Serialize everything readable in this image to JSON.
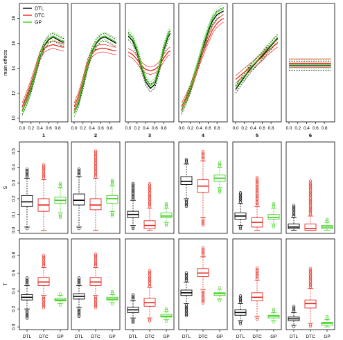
{
  "chart_data": {
    "type": "line",
    "title": "",
    "legend": {
      "position": "top-left of panel 1",
      "entries": [
        {
          "label": "DTL",
          "color": "#000000"
        },
        {
          "label": "DTC",
          "color": "#e8251b"
        },
        {
          "label": "GP",
          "color": "#3cd11a"
        }
      ]
    },
    "rows": [
      {
        "ylabel": "main effects",
        "ylim": [
          9.7,
          19.2
        ],
        "yticks": [
          "10",
          "12",
          "14",
          "16",
          "18"
        ],
        "xticks": [
          "0.0",
          "0.2",
          "0.4",
          "0.6",
          "0.8"
        ],
        "panel_labels": [
          "1",
          "2",
          "3",
          "4",
          "5",
          "6"
        ],
        "grid": false
      },
      {
        "ylabel": "S",
        "ylim": [
          -0.02,
          0.56
        ],
        "yticks": [
          "0.0",
          "0.1",
          "0.2",
          "0.3",
          "0.4",
          "0.5"
        ],
        "grid": false
      },
      {
        "ylabel": "T",
        "ylim": [
          -0.03,
          0.98
        ],
        "yticks": [
          "0.0",
          "0.2",
          "0.4",
          "0.6",
          "0.8"
        ],
        "xlabels": [
          "DTL",
          "DTC",
          "GP"
        ],
        "grid": false
      }
    ],
    "main_effects_x": [
      0,
      0.1,
      0.2,
      0.3,
      0.4,
      0.5,
      0.6,
      0.7,
      0.8,
      0.9,
      0.95
    ],
    "main_effects": [
      {
        "panel": "1",
        "DTL": [
          10.6,
          11.3,
          12.3,
          13.6,
          14.9,
          15.8,
          16.3,
          16.5,
          16.3,
          16.1,
          16.1
        ],
        "DTC": [
          10.9,
          11.8,
          12.8,
          13.9,
          15.0,
          15.6,
          15.8,
          15.9,
          15.8,
          15.7,
          15.7
        ],
        "GP": [
          10.5,
          11.3,
          12.4,
          13.7,
          15.0,
          15.9,
          16.4,
          16.6,
          16.4,
          16.2,
          16.2
        ]
      },
      {
        "panel": "2",
        "DTL": [
          10.4,
          11.2,
          12.6,
          14.1,
          15.3,
          16.0,
          16.4,
          16.5,
          16.3,
          16.1,
          16.0
        ],
        "DTC": [
          10.9,
          11.8,
          13.0,
          14.4,
          15.2,
          15.5,
          15.6,
          15.6,
          15.5,
          15.4,
          15.4
        ],
        "GP": [
          10.4,
          11.3,
          12.8,
          14.2,
          15.4,
          16.1,
          16.5,
          16.6,
          16.4,
          16.2,
          16.1
        ]
      },
      {
        "panel": "3",
        "DTL": [
          16.6,
          16.2,
          15.3,
          14.0,
          12.9,
          12.4,
          12.7,
          13.9,
          15.4,
          16.5,
          16.8
        ],
        "DTC": [
          15.3,
          15.1,
          14.7,
          14.2,
          13.9,
          13.8,
          13.9,
          14.2,
          14.8,
          15.3,
          15.4
        ],
        "GP": [
          16.8,
          16.4,
          15.5,
          14.2,
          13.1,
          12.6,
          12.9,
          14.1,
          15.6,
          16.7,
          17.0
        ]
      },
      {
        "panel": "4",
        "DTL": [
          10.6,
          11.4,
          12.3,
          13.4,
          14.6,
          15.8,
          16.9,
          17.8,
          18.3,
          18.5,
          18.6
        ],
        "DTC": [
          10.9,
          11.6,
          12.4,
          13.4,
          14.5,
          15.4,
          16.3,
          17.1,
          17.6,
          17.9,
          18.0
        ],
        "GP": [
          10.7,
          11.4,
          12.4,
          13.6,
          14.8,
          16.0,
          17.1,
          18.0,
          18.5,
          18.7,
          18.8
        ]
      },
      {
        "panel": "5",
        "DTL": [
          12.3,
          12.8,
          13.3,
          13.8,
          14.2,
          14.6,
          15.0,
          15.4,
          15.8,
          16.2,
          16.4
        ],
        "DTC": [
          13.1,
          13.4,
          13.7,
          14.0,
          14.3,
          14.6,
          14.9,
          15.3,
          15.6,
          15.9,
          16.0
        ],
        "GP": [
          12.5,
          12.9,
          13.4,
          13.9,
          14.3,
          14.7,
          15.1,
          15.5,
          15.9,
          16.3,
          16.5
        ]
      },
      {
        "panel": "6",
        "DTL": [
          14.2,
          14.2,
          14.2,
          14.2,
          14.2,
          14.2,
          14.2,
          14.2,
          14.2,
          14.2,
          14.2
        ],
        "DTC": [
          14.4,
          14.4,
          14.4,
          14.4,
          14.4,
          14.4,
          14.4,
          14.4,
          14.4,
          14.4,
          14.4
        ],
        "GP": [
          14.3,
          14.3,
          14.3,
          14.3,
          14.3,
          14.3,
          14.3,
          14.3,
          14.3,
          14.3,
          14.3
        ]
      }
    ],
    "boxplots_S": [
      {
        "panel": "1",
        "DTL": {
          "min": 0.02,
          "q1": 0.15,
          "median": 0.18,
          "q3": 0.22,
          "max": 0.33,
          "outliers_low": 0.01,
          "outliers_high": 0.39
        },
        "DTC": {
          "min": 0.0,
          "q1": 0.12,
          "median": 0.16,
          "q3": 0.2,
          "max": 0.32,
          "outliers_low": 0.0,
          "outliers_high": 0.42
        },
        "GP": {
          "min": 0.11,
          "q1": 0.17,
          "median": 0.19,
          "q3": 0.21,
          "max": 0.27,
          "outliers_low": 0.08,
          "outliers_high": 0.3
        }
      },
      {
        "panel": "2",
        "DTL": {
          "min": 0.02,
          "q1": 0.16,
          "median": 0.19,
          "q3": 0.23,
          "max": 0.34,
          "outliers_low": 0.01,
          "outliers_high": 0.39
        },
        "DTC": {
          "min": 0.0,
          "q1": 0.13,
          "median": 0.16,
          "q3": 0.2,
          "max": 0.33,
          "outliers_low": 0.0,
          "outliers_high": 0.5
        },
        "GP": {
          "min": 0.12,
          "q1": 0.17,
          "median": 0.2,
          "q3": 0.22,
          "max": 0.28,
          "outliers_low": 0.09,
          "outliers_high": 0.32
        }
      },
      {
        "panel": "3",
        "DTL": {
          "min": 0.03,
          "q1": 0.08,
          "median": 0.1,
          "q3": 0.12,
          "max": 0.19,
          "outliers_low": 0.01,
          "outliers_high": 0.3
        },
        "DTC": {
          "min": 0.0,
          "q1": 0.01,
          "median": 0.03,
          "q3": 0.06,
          "max": 0.14,
          "outliers_low": 0.0,
          "outliers_high": 0.29
        },
        "GP": {
          "min": 0.05,
          "q1": 0.08,
          "median": 0.09,
          "q3": 0.11,
          "max": 0.14,
          "outliers_low": 0.03,
          "outliers_high": 0.17
        }
      },
      {
        "panel": "4",
        "DTL": {
          "min": 0.2,
          "q1": 0.29,
          "median": 0.31,
          "q3": 0.34,
          "max": 0.42,
          "outliers_low": 0.15,
          "outliers_high": 0.45
        },
        "DTC": {
          "min": 0.08,
          "q1": 0.24,
          "median": 0.28,
          "q3": 0.32,
          "max": 0.44,
          "outliers_low": 0.03,
          "outliers_high": 0.5
        },
        "GP": {
          "min": 0.27,
          "q1": 0.31,
          "median": 0.33,
          "q3": 0.35,
          "max": 0.4,
          "outliers_low": 0.24,
          "outliers_high": 0.43
        }
      },
      {
        "panel": "5",
        "DTL": {
          "min": 0.03,
          "q1": 0.07,
          "median": 0.09,
          "q3": 0.11,
          "max": 0.17,
          "outliers_low": 0.01,
          "outliers_high": 0.24
        },
        "DTC": {
          "min": 0.0,
          "q1": 0.02,
          "median": 0.05,
          "q3": 0.08,
          "max": 0.15,
          "outliers_low": 0.0,
          "outliers_high": 0.33
        },
        "GP": {
          "min": 0.04,
          "q1": 0.07,
          "median": 0.08,
          "q3": 0.1,
          "max": 0.14,
          "outliers_low": 0.02,
          "outliers_high": 0.17
        }
      },
      {
        "panel": "6",
        "DTL": {
          "min": 0.0,
          "q1": 0.01,
          "median": 0.02,
          "q3": 0.04,
          "max": 0.08,
          "outliers_low": 0.0,
          "outliers_high": 0.16
        },
        "DTC": {
          "min": 0.0,
          "q1": 0.0,
          "median": 0.01,
          "q3": 0.04,
          "max": 0.09,
          "outliers_low": 0.0,
          "outliers_high": 0.31
        },
        "GP": {
          "min": 0.0,
          "q1": 0.01,
          "median": 0.02,
          "q3": 0.03,
          "max": 0.05,
          "outliers_low": 0.0,
          "outliers_high": 0.07
        }
      }
    ],
    "boxplots_T": [
      {
        "panel": "1",
        "DTL": {
          "min": 0.2,
          "q1": 0.3,
          "median": 0.33,
          "q3": 0.36,
          "max": 0.46,
          "outliers_low": 0.09,
          "outliers_high": 0.55
        },
        "DTC": {
          "min": 0.35,
          "q1": 0.46,
          "median": 0.5,
          "q3": 0.55,
          "max": 0.66,
          "outliers_low": 0.22,
          "outliers_high": 0.8
        },
        "GP": {
          "min": 0.26,
          "q1": 0.29,
          "median": 0.3,
          "q3": 0.32,
          "max": 0.35,
          "outliers_low": 0.24,
          "outliers_high": 0.37
        }
      },
      {
        "panel": "2",
        "DTL": {
          "min": 0.22,
          "q1": 0.31,
          "median": 0.34,
          "q3": 0.37,
          "max": 0.46,
          "outliers_low": 0.12,
          "outliers_high": 0.55
        },
        "DTC": {
          "min": 0.35,
          "q1": 0.46,
          "median": 0.5,
          "q3": 0.55,
          "max": 0.66,
          "outliers_low": 0.22,
          "outliers_high": 0.81
        },
        "GP": {
          "min": 0.27,
          "q1": 0.3,
          "median": 0.31,
          "q3": 0.33,
          "max": 0.36,
          "outliers_low": 0.25,
          "outliers_high": 0.39
        }
      },
      {
        "panel": "3",
        "DTL": {
          "min": 0.1,
          "q1": 0.16,
          "median": 0.19,
          "q3": 0.22,
          "max": 0.29,
          "outliers_low": 0.05,
          "outliers_high": 0.36
        },
        "DTC": {
          "min": 0.1,
          "q1": 0.23,
          "median": 0.27,
          "q3": 0.32,
          "max": 0.44,
          "outliers_low": 0.07,
          "outliers_high": 0.62
        },
        "GP": {
          "min": 0.08,
          "q1": 0.11,
          "median": 0.12,
          "q3": 0.14,
          "max": 0.17,
          "outliers_low": 0.06,
          "outliers_high": 0.21
        }
      },
      {
        "panel": "4",
        "DTL": {
          "min": 0.26,
          "q1": 0.35,
          "median": 0.38,
          "q3": 0.41,
          "max": 0.5,
          "outliers_low": 0.13,
          "outliers_high": 0.6
        },
        "DTC": {
          "min": 0.42,
          "q1": 0.56,
          "median": 0.6,
          "q3": 0.65,
          "max": 0.78,
          "outliers_low": 0.27,
          "outliers_high": 0.89
        },
        "GP": {
          "min": 0.31,
          "q1": 0.35,
          "median": 0.37,
          "q3": 0.38,
          "max": 0.42,
          "outliers_low": 0.29,
          "outliers_high": 0.44
        }
      },
      {
        "panel": "5",
        "DTL": {
          "min": 0.07,
          "q1": 0.13,
          "median": 0.16,
          "q3": 0.19,
          "max": 0.26,
          "outliers_low": 0.03,
          "outliers_high": 0.35
        },
        "DTC": {
          "min": 0.12,
          "q1": 0.29,
          "median": 0.33,
          "q3": 0.38,
          "max": 0.52,
          "outliers_low": 0.08,
          "outliers_high": 0.66
        },
        "GP": {
          "min": 0.07,
          "q1": 0.1,
          "median": 0.12,
          "q3": 0.13,
          "max": 0.16,
          "outliers_low": 0.05,
          "outliers_high": 0.2
        }
      },
      {
        "panel": "6",
        "DTL": {
          "min": 0.02,
          "q1": 0.07,
          "median": 0.09,
          "q3": 0.11,
          "max": 0.16,
          "outliers_low": 0.0,
          "outliers_high": 0.22
        },
        "DTC": {
          "min": 0.04,
          "q1": 0.21,
          "median": 0.26,
          "q3": 0.3,
          "max": 0.43,
          "outliers_low": 0.0,
          "outliers_high": 0.65
        },
        "GP": {
          "min": 0.0,
          "q1": 0.02,
          "median": 0.04,
          "q3": 0.05,
          "max": 0.08,
          "outliers_low": 0.0,
          "outliers_high": 0.11
        }
      }
    ]
  }
}
